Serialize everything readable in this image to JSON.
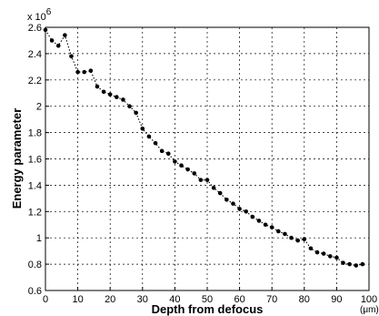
{
  "chart_data": {
    "type": "line",
    "title": "",
    "xlabel": "Depth from defocus",
    "xunit": "(μm)",
    "ylabel": "Energy parameter",
    "y_multiplier": "x 10",
    "y_multiplier_exponent": "6",
    "xlim": [
      0,
      100
    ],
    "ylim": [
      0.6,
      2.6
    ],
    "x_ticks": [
      "0",
      "10",
      "20",
      "30",
      "40",
      "50",
      "60",
      "70",
      "80",
      "90",
      "100"
    ],
    "y_ticks": [
      "0.6",
      "0.8",
      "1",
      "1.2",
      "1.4",
      "1.6",
      "1.8",
      "2",
      "2.2",
      "2.4",
      "2.6"
    ],
    "grid": true,
    "line_style": "dotted",
    "marker": "dot",
    "color": "#000000",
    "series": [
      {
        "x": [
          0,
          2,
          4,
          6,
          8,
          10,
          12,
          14,
          16,
          18,
          20,
          22,
          24,
          26,
          28,
          30,
          32,
          34,
          36,
          38,
          40,
          42,
          44,
          46,
          48,
          50,
          52,
          54,
          56,
          58,
          60,
          62,
          64,
          66,
          68,
          70,
          72,
          74,
          76,
          78,
          80,
          82,
          84,
          86,
          88,
          90,
          92,
          94,
          96,
          98
        ],
        "y": [
          2.58,
          2.5,
          2.46,
          2.54,
          2.38,
          2.26,
          2.26,
          2.27,
          2.15,
          2.11,
          2.09,
          2.07,
          2.05,
          2.0,
          1.95,
          1.83,
          1.77,
          1.72,
          1.66,
          1.64,
          1.58,
          1.55,
          1.52,
          1.49,
          1.44,
          1.44,
          1.38,
          1.34,
          1.29,
          1.26,
          1.22,
          1.2,
          1.16,
          1.13,
          1.1,
          1.08,
          1.05,
          1.03,
          1.0,
          0.98,
          0.99,
          0.92,
          0.89,
          0.88,
          0.86,
          0.85,
          0.81,
          0.8,
          0.79,
          0.8
        ]
      }
    ]
  }
}
